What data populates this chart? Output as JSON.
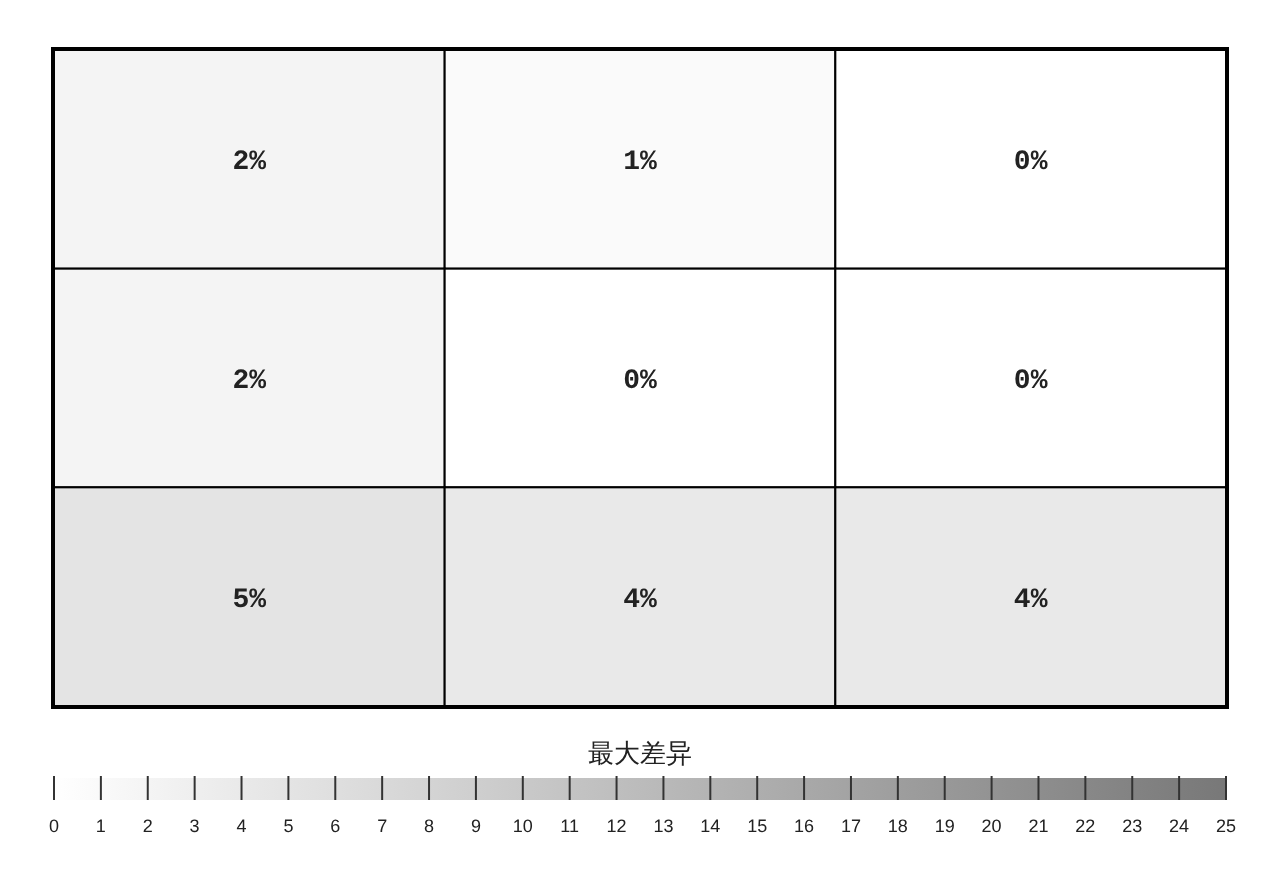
{
  "chart_data": {
    "type": "heatmap",
    "categories": [
      null,
      null,
      null
    ],
    "y_categories": [
      null,
      null,
      null
    ],
    "cells": [
      [
        2,
        1,
        0
      ],
      [
        2,
        0,
        0
      ],
      [
        5,
        4,
        4
      ]
    ],
    "cell_labels": [
      [
        "2%",
        "1%",
        "0%"
      ],
      [
        "2%",
        "0%",
        "0%"
      ],
      [
        "5%",
        "4%",
        "4%"
      ]
    ],
    "clabel": "最大差异",
    "clim": [
      0,
      25
    ],
    "cticks": [
      0,
      1,
      2,
      3,
      4,
      5,
      6,
      7,
      8,
      9,
      10,
      11,
      12,
      13,
      14,
      15,
      16,
      17,
      18,
      19,
      20,
      21,
      22,
      23,
      24,
      25
    ]
  }
}
